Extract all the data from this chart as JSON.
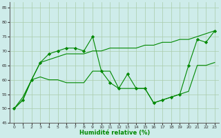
{
  "xlabel": "Humidité relative (%)",
  "background_color": "#ceecea",
  "grid_color": "#aaccaa",
  "line_color": "#008800",
  "xlim": [
    -0.5,
    23.5
  ],
  "ylim": [
    45,
    87
  ],
  "xticks": [
    0,
    1,
    2,
    3,
    4,
    5,
    6,
    7,
    8,
    9,
    10,
    11,
    12,
    13,
    14,
    15,
    16,
    17,
    18,
    19,
    20,
    21,
    22,
    23
  ],
  "yticks": [
    45,
    50,
    55,
    60,
    65,
    70,
    75,
    80,
    85
  ],
  "spiky_x": [
    0,
    1,
    2,
    3,
    4,
    5,
    6,
    7,
    8,
    9,
    10,
    11,
    12,
    13,
    14,
    15,
    16,
    17,
    18,
    19,
    20,
    21,
    22,
    23
  ],
  "spiky_y": [
    50,
    53,
    60,
    66,
    69,
    70,
    71,
    71,
    70,
    75,
    63,
    59,
    57,
    62,
    57,
    57,
    52,
    53,
    54,
    55,
    65,
    74,
    73,
    77
  ],
  "upper_x": [
    0,
    1,
    2,
    3,
    4,
    5,
    6,
    7,
    8,
    9,
    10,
    11,
    12,
    13,
    14,
    15,
    16,
    17,
    18,
    19,
    20,
    21,
    22,
    23
  ],
  "upper_y": [
    50,
    53,
    60,
    66,
    67,
    68,
    69,
    69,
    69,
    70,
    70,
    71,
    71,
    71,
    71,
    72,
    72,
    73,
    73,
    74,
    74,
    75,
    76,
    77
  ],
  "lower_x": [
    0,
    1,
    2,
    3,
    4,
    5,
    6,
    7,
    8,
    9,
    10,
    11,
    12,
    13,
    14,
    15,
    16,
    17,
    18,
    19,
    20,
    21,
    22,
    23
  ],
  "lower_y": [
    50,
    54,
    60,
    61,
    60,
    60,
    59,
    59,
    59,
    63,
    63,
    63,
    57,
    57,
    57,
    57,
    52,
    53,
    54,
    55,
    56,
    65,
    65,
    66
  ]
}
